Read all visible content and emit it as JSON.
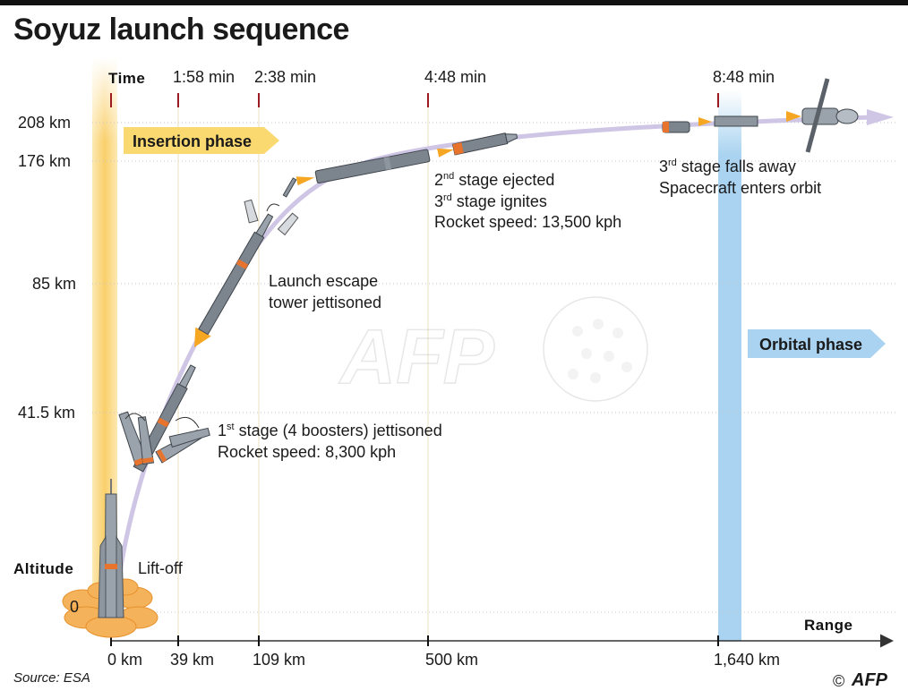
{
  "title": "Soyuz launch sequence",
  "axes": {
    "time_label": "Time",
    "altitude_label": "Altitude",
    "range_label": "Range",
    "time_ticks": [
      "1:58 min",
      "2:38 min",
      "4:48 min",
      "8:48 min"
    ],
    "altitude_ticks": [
      "208 km",
      "176 km",
      "85 km",
      "41.5 km",
      "0"
    ],
    "range_ticks": [
      "0 km",
      "39 km",
      "109 km",
      "500 km",
      "1,640 km"
    ]
  },
  "phases": {
    "insertion": "Insertion phase",
    "orbital": "Orbital phase"
  },
  "annotations": {
    "liftoff": "Lift-off",
    "stage1_line1": "1st stage (4 boosters) jettisoned",
    "stage1_line1_sup_base": "1",
    "stage1_line1_sup": "st",
    "stage1_line1_rest": " stage (4 boosters) jettisoned",
    "stage1_line2": "Rocket speed: 8,300 kph",
    "escape_line1": "Launch escape",
    "escape_line2": "tower jettisoned",
    "stage2_line1_base": "2",
    "stage2_line1_sup": "nd",
    "stage2_line1_rest": " stage ejected",
    "stage2_line2_base": "3",
    "stage2_line2_sup": "rd",
    "stage2_line2_rest": " stage ignites",
    "stage2_line3": "Rocket speed: 13,500 kph",
    "stage3_line1_base": "3",
    "stage3_line1_sup": "rd",
    "stage3_line1_rest": " stage falls away",
    "stage3_line2": "Spacecraft enters orbit"
  },
  "footer": {
    "source": "Source: ESA",
    "copyright": "©",
    "logo": "AFP"
  },
  "watermark": "AFP",
  "colors": {
    "insertion_band": "#fbe3a0",
    "orbital_band": "#a9d3f0",
    "trajectory": "#cfc6e6",
    "tick_red": "#9b1b20",
    "rocket_body": "#6f7780",
    "rocket_flame": "#f5a623",
    "booster_orange": "#e8732c"
  }
}
